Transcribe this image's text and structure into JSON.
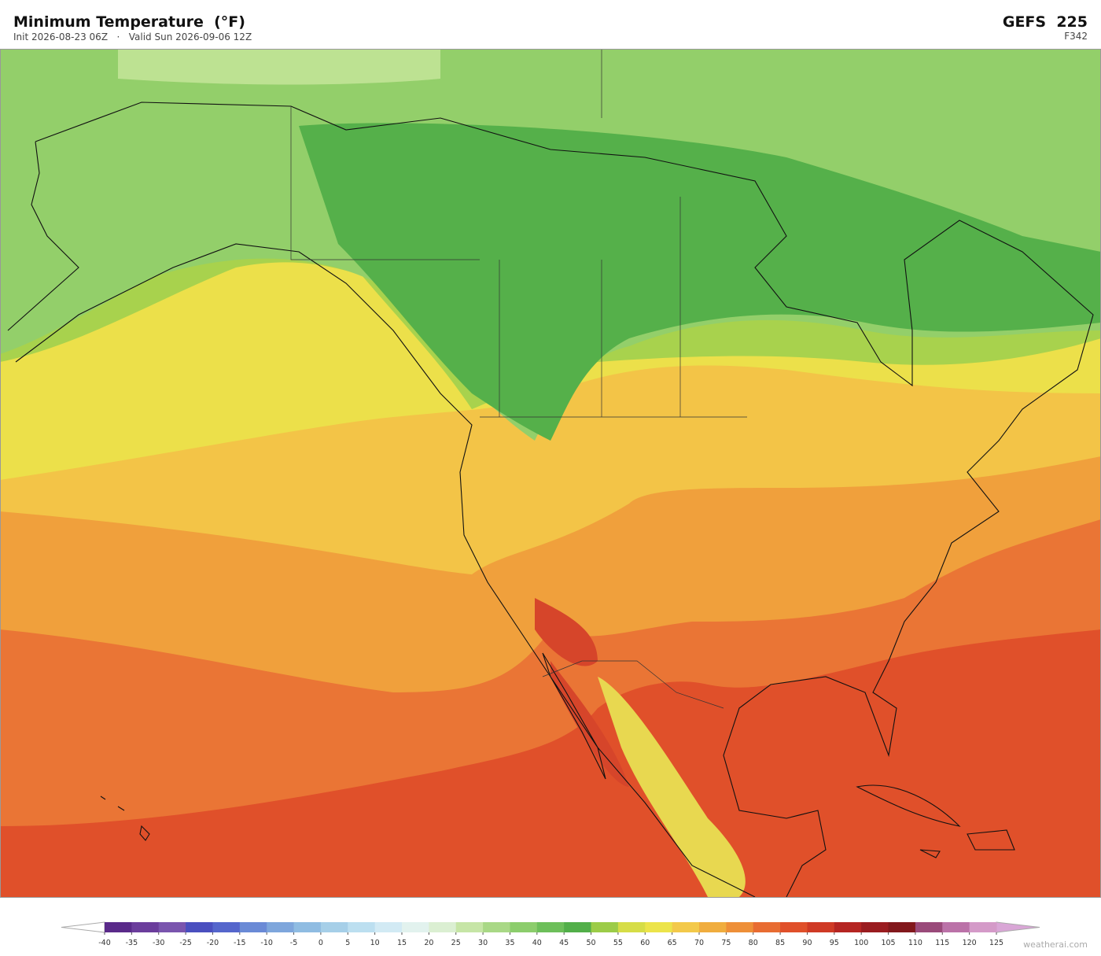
{
  "header": {
    "title": "Minimum Temperature  (°F)",
    "subtitle": "Init 2026-08-23 06Z   ·   Valid Sun 2026-09-06 12Z",
    "model": "GEFS  225",
    "frame": "F342"
  },
  "colorbar": {
    "ticks": [
      -40,
      -35,
      -30,
      -25,
      -20,
      -15,
      -10,
      -5,
      0,
      5,
      10,
      15,
      20,
      25,
      30,
      35,
      40,
      45,
      50,
      55,
      60,
      65,
      70,
      75,
      80,
      85,
      90,
      95,
      100,
      105,
      110,
      115,
      120,
      125
    ],
    "colors": [
      "#5a2a8a",
      "#6b3d9c",
      "#7a55ae",
      "#4a4fbf",
      "#5566cc",
      "#6a8ad6",
      "#7ea6dc",
      "#8fbce2",
      "#a6cfe8",
      "#bcdff0",
      "#d2eaf4",
      "#e2f2ee",
      "#dbefd2",
      "#c6e5a6",
      "#a9d886",
      "#8ccd6c",
      "#6dbf5a",
      "#52af49",
      "#9ccc48",
      "#d6dd47",
      "#ece44a",
      "#f3c94a",
      "#f0ad3e",
      "#ee8f38",
      "#e86c32",
      "#e0502a",
      "#cf3a25",
      "#b52522",
      "#9a1c20",
      "#82181c",
      "#9a4a7a",
      "#bb72a8",
      "#d49ac8"
    ],
    "over_color": "#d9a6d6"
  },
  "footer": {
    "credit": "weatherai.com"
  }
}
